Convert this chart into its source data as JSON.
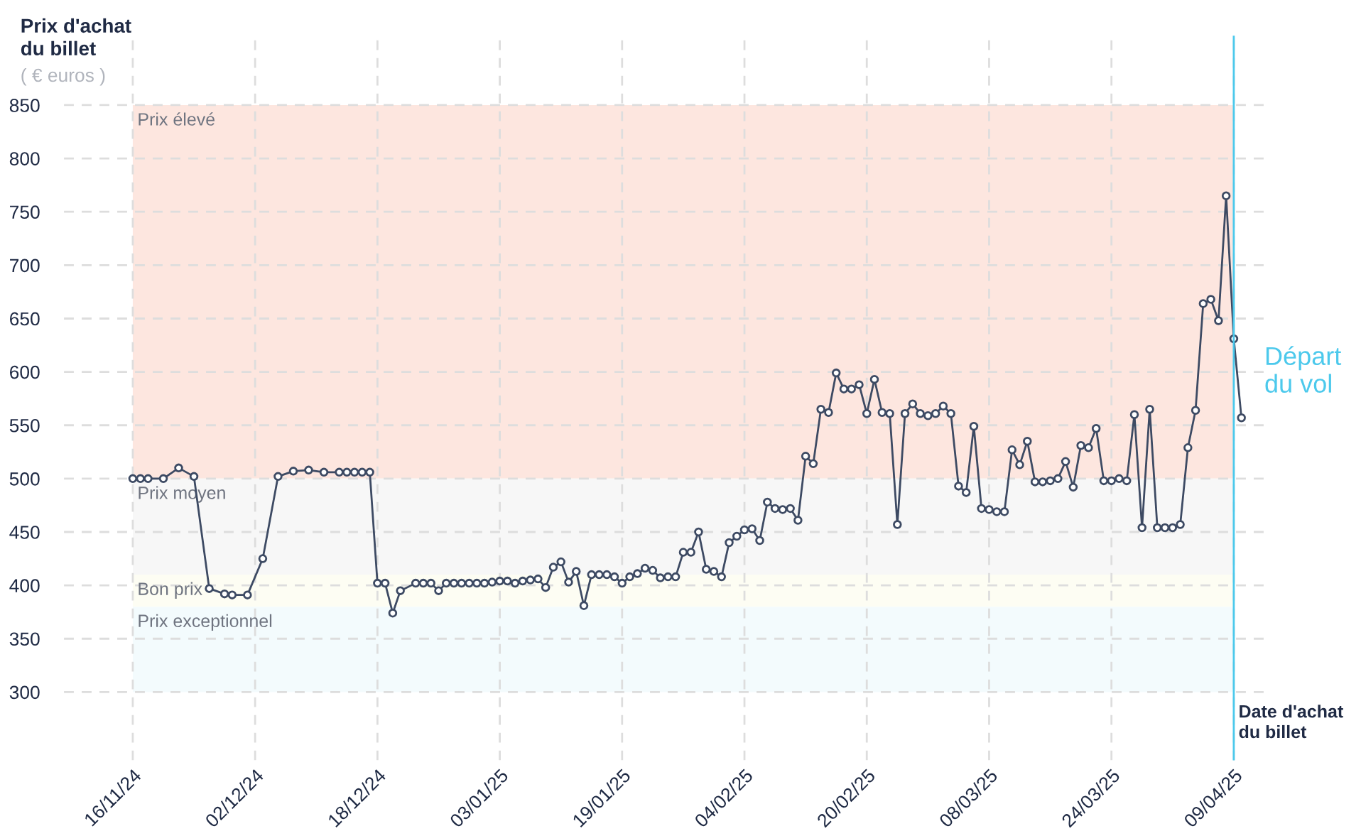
{
  "chart_data": {
    "type": "line",
    "ylabel": "Prix d'achat\ndu billet",
    "subtitle": "( € euros )",
    "xlabel": "Date d'achat\ndu billet",
    "series": [
      {
        "color": "#3d4a63",
        "x": [
          "2024-11-16",
          "2024-11-17",
          "2024-11-18",
          "2024-11-20",
          "2024-11-22",
          "2024-11-24",
          "2024-11-26",
          "2024-11-28",
          "2024-11-29",
          "2024-12-01",
          "2024-12-03",
          "2024-12-05",
          "2024-12-07",
          "2024-12-09",
          "2024-12-11",
          "2024-12-13",
          "2024-12-14",
          "2024-12-15",
          "2024-12-16",
          "2024-12-17",
          "2024-12-18",
          "2024-12-19",
          "2024-12-20",
          "2024-12-21",
          "2024-12-23",
          "2024-12-24",
          "2024-12-25",
          "2024-12-26",
          "2024-12-27",
          "2024-12-28",
          "2024-12-29",
          "2024-12-30",
          "2024-12-31",
          "2025-01-01",
          "2025-01-02",
          "2025-01-03",
          "2025-01-04",
          "2025-01-05",
          "2025-01-06",
          "2025-01-07",
          "2025-01-08",
          "2025-01-09",
          "2025-01-10",
          "2025-01-11",
          "2025-01-12",
          "2025-01-13",
          "2025-01-14",
          "2025-01-15",
          "2025-01-16",
          "2025-01-17",
          "2025-01-18",
          "2025-01-19",
          "2025-01-20",
          "2025-01-21",
          "2025-01-22",
          "2025-01-23",
          "2025-01-24",
          "2025-01-25",
          "2025-01-26",
          "2025-01-27",
          "2025-01-28",
          "2025-01-29",
          "2025-01-30",
          "2025-01-31",
          "2025-02-01",
          "2025-02-02",
          "2025-02-03",
          "2025-02-04",
          "2025-02-05",
          "2025-02-06",
          "2025-02-07",
          "2025-02-08",
          "2025-02-09",
          "2025-02-10",
          "2025-02-11",
          "2025-02-12",
          "2025-02-13",
          "2025-02-14",
          "2025-02-15",
          "2025-02-16",
          "2025-02-17",
          "2025-02-18",
          "2025-02-19",
          "2025-02-20",
          "2025-02-21",
          "2025-02-22",
          "2025-02-23",
          "2025-02-24",
          "2025-02-25",
          "2025-02-26",
          "2025-02-27",
          "2025-02-28",
          "2025-03-01",
          "2025-03-02",
          "2025-03-03",
          "2025-03-04",
          "2025-03-05",
          "2025-03-06",
          "2025-03-07",
          "2025-03-08",
          "2025-03-09",
          "2025-03-10",
          "2025-03-11",
          "2025-03-12",
          "2025-03-13",
          "2025-03-14",
          "2025-03-15",
          "2025-03-16",
          "2025-03-17",
          "2025-03-18",
          "2025-03-19",
          "2025-03-20",
          "2025-03-21",
          "2025-03-22",
          "2025-03-23",
          "2025-03-24",
          "2025-03-25",
          "2025-03-26",
          "2025-03-27",
          "2025-03-28",
          "2025-03-29",
          "2025-03-30",
          "2025-03-31",
          "2025-04-01",
          "2025-04-02",
          "2025-04-03",
          "2025-04-04",
          "2025-04-05",
          "2025-04-06",
          "2025-04-07",
          "2025-04-08",
          "2025-04-09",
          "2025-04-10"
        ],
        "values": [
          500,
          500,
          500,
          500,
          510,
          502,
          397,
          392,
          391,
          391,
          425,
          502,
          507,
          508,
          506,
          506,
          506,
          506,
          506,
          506,
          402,
          402,
          374,
          395,
          402,
          402,
          402,
          395,
          402,
          402,
          402,
          402,
          402,
          402,
          403,
          404,
          404,
          402,
          404,
          405,
          406,
          398,
          417,
          422,
          403,
          413,
          381,
          410,
          410,
          410,
          408,
          402,
          408,
          411,
          416,
          414,
          407,
          408,
          408,
          431,
          431,
          450,
          415,
          413,
          408,
          440,
          446,
          452,
          453,
          442,
          478,
          472,
          471,
          472,
          461,
          521,
          514,
          565,
          562,
          599,
          584,
          584,
          588,
          561,
          593,
          562,
          561,
          457,
          561,
          570,
          561,
          559,
          561,
          568,
          561,
          493,
          487,
          549,
          472,
          471,
          469,
          469,
          527,
          513,
          535,
          497,
          497,
          498,
          500,
          516,
          492,
          531,
          529,
          547,
          498,
          498,
          500,
          498,
          560,
          454,
          565,
          454,
          454,
          454,
          457,
          529,
          564,
          664,
          668,
          648,
          765,
          631,
          557
        ]
      }
    ],
    "marker": "circle",
    "line_style": "solid",
    "xlim": [
      "2024-11-07",
      "2025-04-13"
    ],
    "xticks": [
      {
        "value": "2024-11-16",
        "label": "16/11/24"
      },
      {
        "value": "2024-12-02",
        "label": "02/12/24"
      },
      {
        "value": "2024-12-18",
        "label": "18/12/24"
      },
      {
        "value": "2025-01-03",
        "label": "03/01/25"
      },
      {
        "value": "2025-01-19",
        "label": "19/01/25"
      },
      {
        "value": "2025-02-04",
        "label": "04/02/25"
      },
      {
        "value": "2025-02-20",
        "label": "20/02/25"
      },
      {
        "value": "2025-03-08",
        "label": "08/03/25"
      },
      {
        "value": "2025-03-24",
        "label": "24/03/25"
      },
      {
        "value": "2025-04-09",
        "label": "09/04/25"
      }
    ],
    "ylim": [
      236,
      915
    ],
    "yticks": [
      300,
      350,
      400,
      450,
      500,
      550,
      600,
      650,
      700,
      750,
      800,
      850
    ],
    "grid": true,
    "bands": [
      {
        "axis": "y",
        "from": 500,
        "to": 850,
        "label": "Prix élevé",
        "color": "#fde6df"
      },
      {
        "axis": "y",
        "from": 410,
        "to": 500,
        "label": "Prix moyen",
        "color": "#f7f7f7"
      },
      {
        "axis": "y",
        "from": 380,
        "to": 410,
        "label": "Bon prix",
        "color": "#fdfdf3"
      },
      {
        "axis": "y",
        "from": 300,
        "to": 380,
        "label": "Prix exceptionnel",
        "color": "#f3fbfd"
      }
    ],
    "ref_lines": [
      {
        "axis": "x",
        "value": "2025-04-09",
        "label": "Départ\ndu vol",
        "color": "#4cc9ec",
        "line_style": "solid"
      }
    ]
  }
}
